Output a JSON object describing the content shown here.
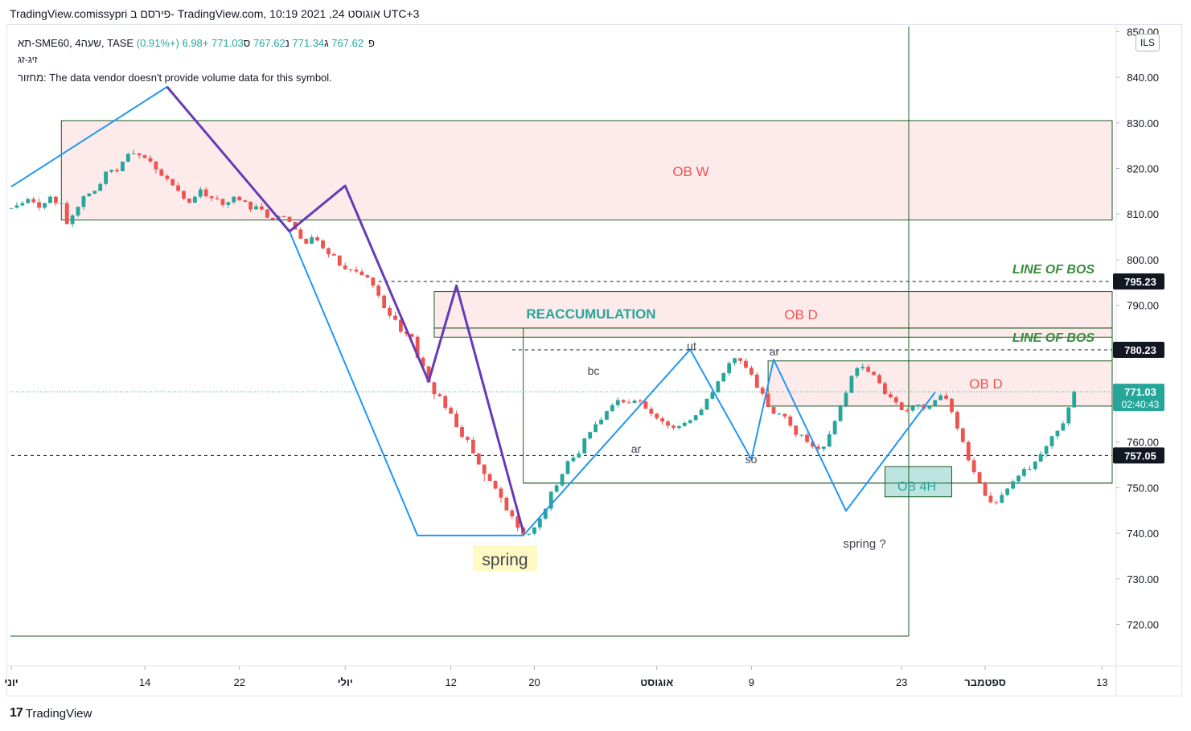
{
  "header": {
    "title": "TradingView.comissypri פירסם ב- TradingView.com, 10:19 2021 ,24 אוגוסט UTC+3"
  },
  "legend": {
    "symbol": "תא-SME60, 4שעה, TASE",
    "o_label": "פ",
    "o": "767.62",
    "h_label": "ג",
    "h": "771.34",
    "l_label": "נ",
    "l": "767.62",
    "c_label": "ס",
    "c": "771.03",
    "change": "+6.98 (+0.91%)",
    "indicator": "זיג-זג",
    "volume_label": "מחזור:",
    "volume_note": "The data vendor doesn't provide volume data for this symbol."
  },
  "currency": "ILS",
  "footer": {
    "brand": "TradingView"
  },
  "colors": {
    "up": "#26a69a",
    "down": "#ef5350",
    "zigzag_blue": "#2196f3",
    "zigzag_purple": "#673ab7",
    "zone_fill": "#fde7e9",
    "zone_border": "#1b5e20",
    "ob4h_fill": "#b2dfdb",
    "bos_text": "#388e3c"
  },
  "chart_data": {
    "type": "candlestick",
    "y_axis": {
      "min": 713,
      "max": 851,
      "ticks": [
        720,
        730,
        740,
        750,
        760,
        770,
        780,
        790,
        800,
        810,
        820,
        830,
        840,
        850
      ],
      "tick_labels": [
        "720.00",
        "730.00",
        "740.00",
        "750.00",
        "760.00",
        "770.00",
        "780.00",
        "790.00",
        "800.00",
        "810.00",
        "820.00",
        "830.00",
        "840.00",
        "850.00"
      ]
    },
    "x_axis": {
      "bars": 196,
      "tick_bars": [
        0,
        24,
        41,
        60,
        79,
        94,
        116,
        133,
        160,
        175,
        196
      ],
      "tick_labels": [
        "יוני",
        "14",
        "22",
        "יולי",
        "12",
        "20",
        "אוגוסט",
        "9",
        "23",
        "ספטמבר",
        "13"
      ]
    },
    "price_labels": [
      {
        "value": 795.23,
        "text": "795.23",
        "style": "black"
      },
      {
        "value": 780.23,
        "text": "780.23",
        "style": "black"
      },
      {
        "value": 771.03,
        "text": "771.03",
        "sub": "02:40:43",
        "style": "green"
      },
      {
        "value": 757.05,
        "text": "757.05",
        "style": "black"
      }
    ],
    "candles": [
      [
        811.2,
        811.3,
        811.5,
        811.5
      ],
      [
        811.4,
        811.9,
        812.6,
        811.2
      ],
      [
        811.9,
        812.4,
        812.9,
        811.7
      ],
      [
        812.4,
        813.3,
        813.6,
        812.3
      ],
      [
        813.3,
        812.6,
        813.8,
        812.3
      ],
      [
        812.6,
        811.4,
        813.5,
        810.8
      ],
      [
        811.4,
        812.4,
        812.5,
        811.0
      ],
      [
        812.4,
        813.8,
        814.2,
        812.4
      ],
      [
        813.8,
        812.4,
        814.0,
        811.8
      ],
      [
        812.4,
        812.4,
        812.6,
        812.2
      ],
      [
        812.4,
        807.8,
        812.9,
        807.7
      ],
      [
        807.8,
        809.7,
        810.0,
        807.1
      ],
      [
        809.7,
        811.6,
        811.7,
        809.3
      ],
      [
        811.6,
        813.9,
        814.2,
        810.9
      ],
      [
        813.9,
        814.5,
        814.6,
        813.8
      ],
      [
        814.5,
        815.1,
        815.1,
        814.3
      ],
      [
        815.1,
        816.6,
        817.0,
        815.0
      ],
      [
        816.6,
        819.3,
        819.3,
        816.3
      ],
      [
        819.3,
        819.7,
        819.8,
        819.0
      ],
      [
        819.7,
        819.4,
        820.1,
        819.0
      ],
      [
        819.4,
        821.5,
        821.5,
        819.4
      ],
      [
        821.5,
        823.2,
        823.5,
        821.3
      ],
      [
        823.2,
        823.3,
        824.2,
        823.2
      ],
      [
        823.3,
        822.9,
        823.4,
        822.2
      ],
      [
        822.9,
        822.3,
        823.1,
        822.2
      ],
      [
        822.3,
        821.5,
        822.9,
        821.2
      ],
      [
        821.5,
        819.8,
        821.7,
        818.9
      ],
      [
        819.8,
        818.4,
        820.1,
        818.3
      ],
      [
        818.4,
        817.7,
        818.8,
        817.2
      ],
      [
        817.7,
        816.3,
        817.7,
        816.2
      ],
      [
        816.3,
        815.1,
        817.0,
        815.0
      ],
      [
        815.1,
        813.4,
        815.1,
        813.0
      ],
      [
        813.4,
        812.5,
        813.5,
        812.3
      ],
      [
        812.5,
        813.8,
        814.0,
        812.4
      ],
      [
        813.8,
        815.4,
        816.0,
        813.4
      ],
      [
        815.4,
        813.9,
        815.9,
        813.6
      ],
      [
        813.9,
        813.5,
        814.0,
        812.8
      ],
      [
        813.5,
        813.3,
        814.1,
        813.0
      ],
      [
        813.3,
        812.0,
        813.5,
        811.5
      ],
      [
        812.0,
        812.6,
        812.8,
        811.3
      ],
      [
        812.6,
        813.8,
        813.9,
        812.2
      ],
      [
        813.8,
        813.0,
        814.0,
        812.9
      ],
      [
        813.0,
        812.7,
        813.1,
        812.6
      ],
      [
        812.7,
        811.0,
        812.8,
        810.5
      ],
      [
        811.0,
        811.7,
        812.2,
        811.0
      ],
      [
        811.7,
        811.0,
        812.5,
        810.7
      ],
      [
        811.0,
        809.2,
        811.1,
        809.1
      ],
      [
        809.2,
        808.7,
        809.2,
        808.5
      ],
      [
        808.7,
        809.5,
        809.8,
        808.4
      ],
      [
        809.5,
        809.4,
        809.7,
        809.4
      ],
      [
        809.4,
        808.3,
        809.4,
        808.2
      ],
      [
        808.3,
        806.6,
        808.3,
        806.6
      ],
      [
        806.6,
        804.6,
        807.1,
        804.6
      ],
      [
        804.6,
        803.5,
        804.6,
        803.4
      ],
      [
        803.5,
        804.9,
        805.5,
        803.4
      ],
      [
        804.9,
        804.2,
        805.3,
        804.0
      ],
      [
        804.2,
        802.5,
        804.5,
        802.2
      ],
      [
        802.5,
        801.2,
        802.7,
        800.5
      ],
      [
        801.2,
        800.9,
        801.6,
        800.9
      ],
      [
        800.9,
        798.7,
        801.0,
        798.5
      ],
      [
        798.7,
        797.9,
        799.4,
        797.7
      ],
      [
        797.9,
        797.8,
        797.9,
        797.2
      ],
      [
        797.8,
        797.4,
        798.5,
        797.0
      ],
      [
        797.4,
        796.6,
        798.0,
        796.6
      ],
      [
        796.6,
        796.1,
        796.8,
        796.0
      ],
      [
        796.1,
        794.3,
        796.1,
        793.8
      ],
      [
        794.3,
        792.1,
        794.7,
        791.6
      ],
      [
        792.1,
        789.4,
        792.4,
        789.3
      ],
      [
        789.4,
        787.7,
        789.9,
        787.1
      ],
      [
        787.7,
        786.8,
        788.6,
        786.6
      ],
      [
        786.8,
        784.2,
        787.1,
        783.9
      ],
      [
        784.2,
        783.7,
        784.8,
        783.1
      ],
      [
        783.7,
        783.1,
        783.9,
        782.8
      ],
      [
        783.1,
        778.5,
        783.5,
        778.5
      ],
      [
        778.5,
        776.6,
        778.8,
        776.1
      ],
      [
        776.6,
        773.1,
        776.7,
        773.0
      ],
      [
        773.1,
        770.5,
        773.3,
        769.4
      ],
      [
        770.5,
        770.1,
        770.8,
        769.8
      ],
      [
        770.1,
        767.5,
        770.4,
        767.0
      ],
      [
        767.5,
        766.2,
        767.9,
        766.2
      ],
      [
        766.2,
        763.3,
        766.9,
        763.2
      ],
      [
        763.3,
        761.1,
        763.8,
        760.9
      ],
      [
        761.1,
        760.5,
        761.4,
        759.9
      ],
      [
        760.5,
        757.5,
        761.1,
        757.5
      ],
      [
        757.5,
        755.1,
        757.7,
        755.0
      ],
      [
        755.1,
        753.0,
        755.1,
        751.4
      ],
      [
        753.0,
        751.5,
        753.1,
        751.4
      ],
      [
        751.5,
        749.8,
        751.6,
        749.6
      ],
      [
        749.8,
        747.8,
        750.3,
        746.7
      ],
      [
        747.8,
        745.0,
        748.1,
        745.0
      ],
      [
        745.0,
        743.7,
        745.4,
        743.1
      ],
      [
        743.7,
        741.2,
        744.3,
        740.4
      ],
      [
        741.2,
        739.7,
        741.6,
        739.6
      ],
      [
        739.7,
        739.9,
        739.9,
        739.5
      ],
      [
        739.9,
        741.3,
        741.3,
        739.6
      ],
      [
        741.3,
        743.2,
        743.5,
        740.6
      ],
      [
        743.2,
        745.4,
        745.4,
        742.9
      ],
      [
        745.4,
        749.1,
        749.3,
        744.9
      ],
      [
        749.1,
        750.5,
        750.8,
        748.9
      ],
      [
        750.5,
        753.0,
        753.1,
        750.2
      ],
      [
        753.0,
        755.8,
        756.1,
        752.9
      ],
      [
        755.8,
        756.6,
        757.2,
        755.5
      ],
      [
        756.6,
        757.5,
        758.1,
        756.5
      ],
      [
        757.5,
        760.8,
        760.9,
        757.5
      ],
      [
        760.8,
        762.2,
        762.3,
        760.5
      ],
      [
        762.2,
        763.9,
        764.5,
        762.2
      ],
      [
        763.9,
        764.9,
        765.4,
        763.8
      ],
      [
        764.9,
        766.8,
        766.9,
        764.8
      ],
      [
        766.8,
        768.1,
        768.5,
        766.6
      ],
      [
        768.1,
        769.2,
        769.8,
        767.6
      ],
      [
        769.2,
        768.7,
        769.4,
        768.5
      ],
      [
        768.7,
        768.6,
        769.4,
        768.5
      ],
      [
        768.6,
        769.1,
        769.4,
        768.6
      ],
      [
        769.1,
        768.9,
        769.5,
        768.4
      ],
      [
        768.9,
        767.3,
        769.1,
        767.2
      ],
      [
        767.3,
        766.2,
        767.8,
        765.6
      ],
      [
        766.2,
        765.2,
        766.4,
        764.9
      ],
      [
        765.2,
        764.5,
        765.6,
        763.8
      ],
      [
        764.5,
        763.6,
        764.9,
        762.9
      ],
      [
        763.6,
        763.1,
        763.8,
        762.6
      ],
      [
        763.1,
        763.5,
        763.7,
        762.7
      ],
      [
        763.5,
        764.2,
        764.5,
        763.4
      ],
      [
        764.2,
        764.8,
        765.0,
        764.0
      ],
      [
        764.8,
        765.9,
        766.0,
        764.7
      ],
      [
        765.9,
        767.1,
        767.6,
        765.9
      ],
      [
        767.1,
        769.5,
        769.6,
        767.1
      ],
      [
        769.5,
        770.9,
        771.5,
        769.4
      ],
      [
        770.9,
        773.3,
        773.5,
        770.8
      ],
      [
        773.3,
        775.1,
        775.3,
        773.2
      ],
      [
        775.1,
        777.3,
        777.7,
        774.5
      ],
      [
        777.3,
        778.4,
        778.5,
        776.7
      ],
      [
        778.4,
        777.8,
        778.5,
        777.1
      ],
      [
        777.8,
        776.3,
        778.4,
        776.1
      ],
      [
        776.3,
        774.8,
        776.8,
        774.5
      ],
      [
        774.8,
        771.9,
        775.3,
        771.9
      ],
      [
        771.9,
        770.6,
        772.3,
        770.1
      ],
      [
        770.6,
        767.7,
        771.0,
        767.7
      ],
      [
        767.7,
        766.2,
        767.9,
        766.1
      ],
      [
        766.2,
        766.2,
        766.5,
        766.0
      ],
      [
        766.2,
        765.6,
        766.3,
        765.1
      ],
      [
        765.6,
        763.6,
        766.0,
        763.2
      ],
      [
        763.6,
        761.6,
        763.7,
        761.0
      ],
      [
        761.6,
        761.6,
        761.6,
        761.1
      ],
      [
        761.6,
        760.0,
        762.1,
        759.7
      ],
      [
        760.0,
        759.0,
        760.1,
        758.6
      ],
      [
        759.0,
        758.5,
        759.6,
        758.1
      ],
      [
        758.5,
        759.0,
        759.0,
        757.9
      ],
      [
        759.0,
        761.7,
        762.4,
        758.9
      ],
      [
        761.7,
        764.6,
        764.9,
        761.5
      ],
      [
        764.6,
        768.0,
        768.2,
        764.5
      ],
      [
        768.0,
        770.8,
        771.3,
        767.6
      ],
      [
        770.8,
        774.5,
        774.7,
        770.7
      ],
      [
        774.5,
        776.2,
        776.5,
        774.0
      ],
      [
        776.2,
        776.5,
        777.2,
        775.7
      ],
      [
        776.5,
        775.4,
        777.0,
        775.2
      ],
      [
        775.4,
        774.7,
        775.6,
        774.6
      ],
      [
        774.7,
        772.9,
        775.0,
        772.8
      ],
      [
        772.9,
        770.5,
        773.3,
        770.4
      ],
      [
        770.5,
        769.8,
        771.1,
        769.6
      ],
      [
        769.8,
        768.7,
        770.2,
        768.1
      ],
      [
        768.7,
        767.0,
        768.8,
        766.9
      ],
      [
        767.0,
        766.9,
        767.6,
        766.4
      ],
      [
        766.9,
        767.8,
        768.2,
        766.5
      ],
      [
        767.8,
        768.2,
        768.2,
        767.2
      ],
      [
        768.2,
        767.3,
        768.4,
        766.8
      ],
      [
        767.3,
        767.9,
        768.0,
        767.0
      ],
      [
        767.9,
        769.2,
        769.3,
        767.8
      ],
      [
        769.2,
        770.2,
        770.6,
        769.2
      ],
      [
        770.2,
        769.5,
        770.8,
        769.4
      ],
      [
        769.5,
        766.6,
        769.7,
        766.2
      ],
      [
        766.6,
        763.0,
        766.9,
        762.5
      ],
      [
        763.0,
        760.0,
        763.2,
        759.8
      ],
      [
        760.0,
        756.0,
        760.4,
        755.7
      ],
      [
        756.0,
        753.4,
        756.6,
        752.9
      ],
      [
        753.4,
        751.1,
        753.4,
        751.0
      ],
      [
        751.1,
        748.2,
        751.4,
        748.1
      ],
      [
        748.2,
        746.8,
        749.0,
        746.5
      ],
      [
        746.8,
        746.7,
        747.2,
        746.3
      ],
      [
        746.7,
        748.4,
        749.0,
        746.5
      ],
      [
        748.4,
        749.8,
        749.9,
        748.1
      ],
      [
        749.8,
        751.4,
        751.8,
        749.5
      ],
      [
        751.4,
        752.6,
        752.8,
        751.0
      ],
      [
        752.6,
        754.1,
        754.5,
        752.2
      ],
      [
        754.1,
        754.1,
        754.9,
        753.8
      ],
      [
        754.1,
        755.7,
        755.9,
        753.7
      ],
      [
        755.7,
        757.4,
        758.0,
        755.7
      ],
      [
        757.4,
        759.1,
        759.3,
        756.7
      ],
      [
        759.1,
        761.3,
        761.4,
        758.5
      ],
      [
        761.3,
        762.5,
        762.5,
        760.6
      ],
      [
        762.5,
        764.1,
        764.6,
        762.5
      ],
      [
        764.1,
        767.6,
        767.7,
        763.5
      ],
      [
        767.6,
        771.0,
        771.3,
        767.6
      ]
    ],
    "zigzag_blue": [
      [
        0,
        816
      ],
      [
        28,
        837.9
      ],
      [
        50,
        806.2
      ],
      [
        73,
        739.5
      ],
      [
        92,
        739.5
      ],
      [
        122,
        780.3
      ],
      [
        133,
        756.2
      ],
      [
        137,
        778.1
      ],
      [
        150,
        744.9
      ],
      [
        166,
        770.9
      ]
    ],
    "zigzag_purple": [
      [
        28,
        837.9
      ],
      [
        50,
        806.2
      ],
      [
        60,
        816.2
      ],
      [
        75,
        773.3
      ],
      [
        80,
        794.3
      ],
      [
        92,
        740.3
      ]
    ],
    "boxes": [
      {
        "b0": 9,
        "b1": 197,
        "top": 830.5,
        "bottom": 808.7,
        "fill": "#fde7e9",
        "label": "OB W"
      },
      {
        "b0": 76,
        "b1": 197,
        "top": 793,
        "bottom": 785,
        "fill": "#fde7e9",
        "label": ""
      },
      {
        "b0": 76,
        "b1": 197,
        "top": 785,
        "bottom": 783,
        "fill": "#fde7e9",
        "label": "OB D"
      },
      {
        "b0": 92,
        "b1": 197,
        "top": 785,
        "bottom": 751,
        "fill": "none",
        "label": "REACCUMULATION"
      },
      {
        "b0": 136,
        "b1": 197,
        "top": 777.8,
        "bottom": 767.9,
        "fill": "#fde7e9",
        "label": "OB D"
      },
      {
        "b0": 157,
        "b1": 169,
        "top": 754.6,
        "bottom": 748,
        "fill": "#b2dfdb",
        "label": "OB 4H"
      }
    ],
    "bos_lines": [
      {
        "value": 795.23,
        "b0": 66,
        "label": "LINE OF BOS"
      },
      {
        "value": 780.23,
        "b0": 90,
        "label": "LINE OF BOS"
      }
    ],
    "dashed_lines": [
      757.05
    ],
    "annotations": [
      "spring",
      "bc",
      "ar",
      "ut",
      "ar",
      "so",
      "spring ?"
    ]
  }
}
